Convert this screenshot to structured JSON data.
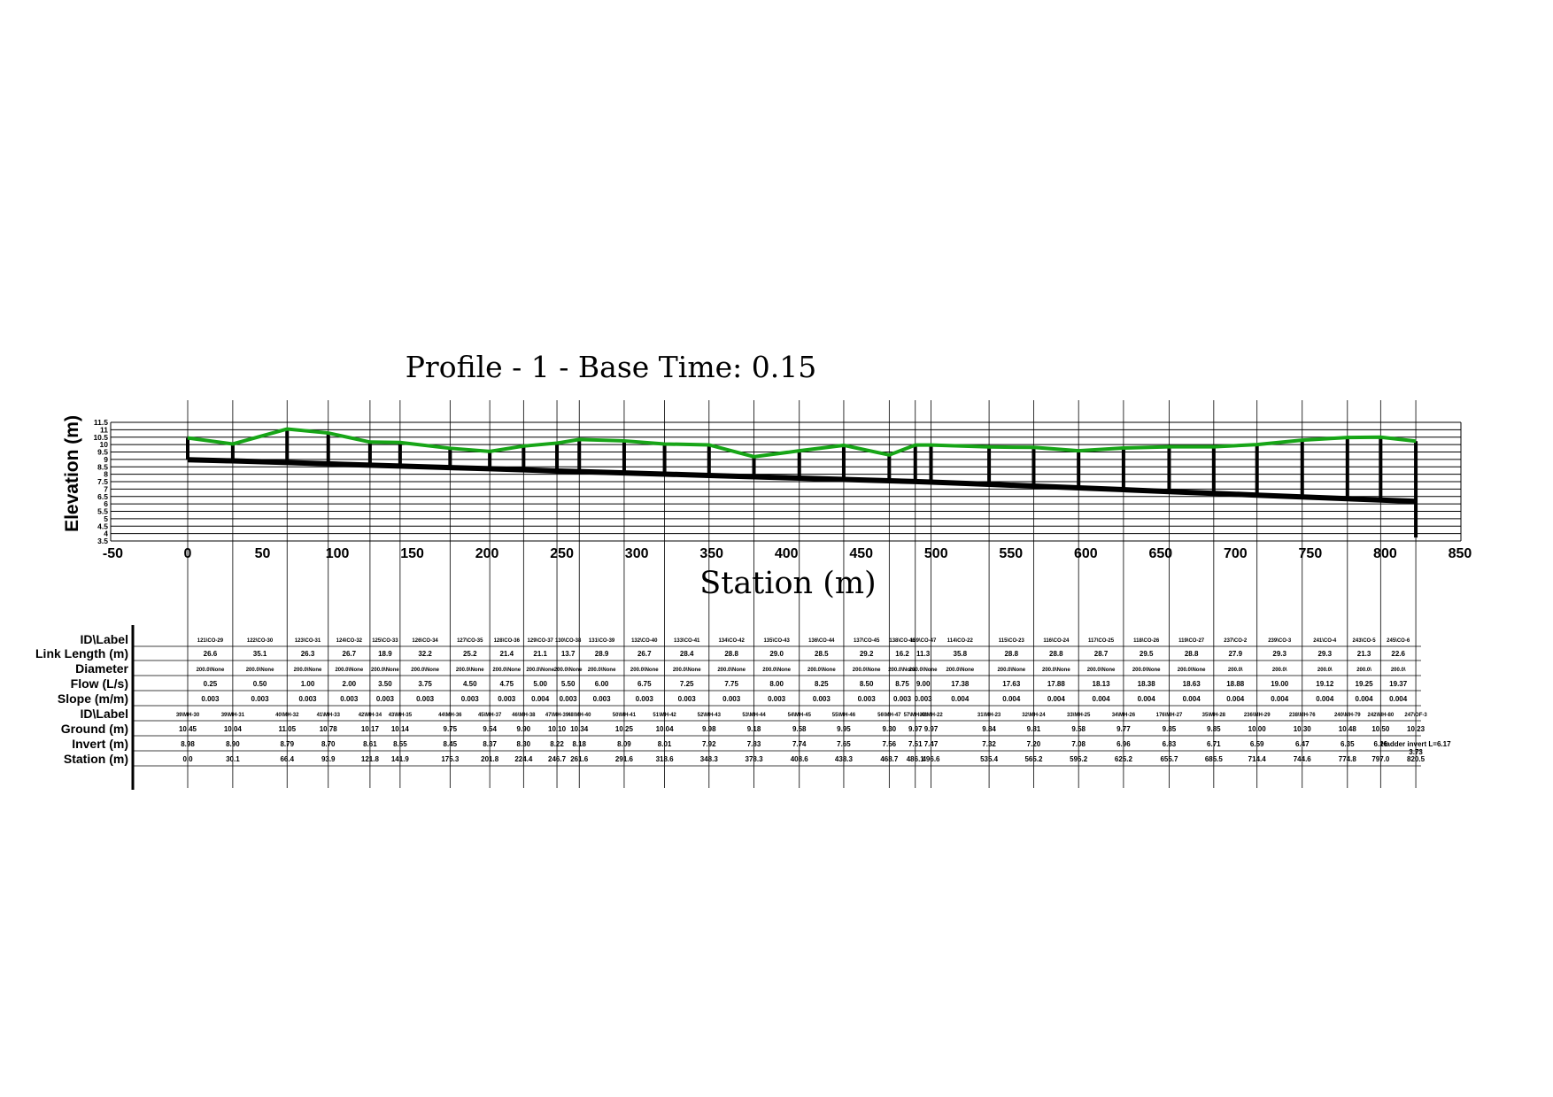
{
  "chart_data": {
    "type": "line",
    "title": "Profile - 1 - Base Time: 0.15",
    "xlabel": "Station (m)",
    "ylabel": "Elevation (m)",
    "xlim": [
      -50,
      850
    ],
    "ylim": [
      3.5,
      11.5
    ],
    "xticks": [
      -50,
      0,
      50,
      100,
      150,
      200,
      250,
      300,
      350,
      400,
      450,
      500,
      550,
      600,
      650,
      700,
      750,
      800,
      850
    ],
    "xtick_labels": [
      "-50",
      "0",
      "50",
      "100",
      "150",
      "200",
      "250",
      "300",
      "350",
      "400",
      "450",
      "500",
      "550",
      "600",
      "650",
      "700",
      "750",
      "800",
      "850"
    ],
    "yticks": [
      3.5,
      4,
      4.5,
      5,
      5.5,
      6,
      6.5,
      7,
      7.5,
      8,
      8.5,
      9,
      9.5,
      10,
      10.5,
      11,
      11.5
    ],
    "ytick_labels": [
      "3.5",
      "4",
      "4.5",
      "5",
      "5.5",
      "6",
      "6.5",
      "7",
      "7.5",
      "8",
      "8.5",
      "9",
      "9.5",
      "10",
      "10.5",
      "11",
      "11.5"
    ],
    "grid": true,
    "colors": {
      "ground": "#17a517",
      "pipe": "#000000",
      "grid": "#000000"
    },
    "nodes": [
      {
        "id": "39\\MH-30",
        "station": 0.0,
        "ground": 10.45,
        "invert": 8.98,
        "ground_label": "10.45",
        "invert_label": "8.98",
        "station_label": "0.0"
      },
      {
        "id": "39\\MH-31",
        "station": 30.1,
        "ground": 10.04,
        "invert": 8.9,
        "ground_label": "10.04",
        "invert_label": "8.90",
        "station_label": "30.1"
      },
      {
        "id": "40\\MH-32",
        "station": 66.4,
        "ground": 11.05,
        "invert": 8.79,
        "ground_label": "11.05",
        "invert_label": "8.79",
        "station_label": "66.4"
      },
      {
        "id": "41\\MH-33",
        "station": 93.9,
        "ground": 10.78,
        "invert": 8.7,
        "ground_label": "10.78",
        "invert_label": "8.70",
        "station_label": "93.9"
      },
      {
        "id": "42\\MH-34",
        "station": 121.8,
        "ground": 10.17,
        "invert": 8.61,
        "ground_label": "10.17",
        "invert_label": "8.61",
        "station_label": "121.8"
      },
      {
        "id": "43\\MH-35",
        "station": 141.9,
        "ground": 10.14,
        "invert": 8.55,
        "ground_label": "10.14",
        "invert_label": "8.55",
        "station_label": "141.9"
      },
      {
        "id": "44\\MH-36",
        "station": 175.3,
        "ground": 9.75,
        "invert": 8.45,
        "ground_label": "9.75",
        "invert_label": "8.45",
        "station_label": "175.3"
      },
      {
        "id": "45\\MH-37",
        "station": 201.8,
        "ground": 9.54,
        "invert": 8.37,
        "ground_label": "9.54",
        "invert_label": "8.37",
        "station_label": "201.8"
      },
      {
        "id": "46\\MH-38",
        "station": 224.4,
        "ground": 9.9,
        "invert": 8.3,
        "ground_label": "9.90",
        "invert_label": "8.30",
        "station_label": "224.4"
      },
      {
        "id": "47\\MH-39",
        "station": 246.7,
        "ground": 10.1,
        "invert": 8.22,
        "ground_label": "10.10",
        "invert_label": "8.22",
        "station_label": "246.7"
      },
      {
        "id": "48\\MH-40",
        "station": 261.6,
        "ground": 10.34,
        "invert": 8.18,
        "ground_label": "10.34",
        "invert_label": "8.18",
        "station_label": "261.6"
      },
      {
        "id": "50\\MH-41",
        "station": 291.6,
        "ground": 10.25,
        "invert": 8.09,
        "ground_label": "10.25",
        "invert_label": "8.09",
        "station_label": "291.6"
      },
      {
        "id": "51\\MH-42",
        "station": 318.6,
        "ground": 10.04,
        "invert": 8.01,
        "ground_label": "10.04",
        "invert_label": "8.01",
        "station_label": "318.6"
      },
      {
        "id": "52\\MH-43",
        "station": 348.3,
        "ground": 9.98,
        "invert": 7.92,
        "ground_label": "9.98",
        "invert_label": "7.92",
        "station_label": "348.3"
      },
      {
        "id": "53\\MH-44",
        "station": 378.3,
        "ground": 9.18,
        "invert": 7.83,
        "ground_label": "9.18",
        "invert_label": "7.83",
        "station_label": "378.3"
      },
      {
        "id": "54\\MH-45",
        "station": 408.6,
        "ground": 9.58,
        "invert": 7.74,
        "ground_label": "9.58",
        "invert_label": "7.74",
        "station_label": "408.6"
      },
      {
        "id": "55\\MH-46",
        "station": 438.3,
        "ground": 9.95,
        "invert": 7.65,
        "ground_label": "9.95",
        "invert_label": "7.65",
        "station_label": "438.3"
      },
      {
        "id": "56\\MH-47",
        "station": 468.7,
        "ground": 9.3,
        "invert": 7.56,
        "ground_label": "9.30",
        "invert_label": "7.56",
        "station_label": "468.7"
      },
      {
        "id": "57\\MH-48",
        "station": 486.1,
        "ground": 9.97,
        "invert": 7.51,
        "ground_label": "9.97",
        "invert_label": "7.51",
        "station_label": "486.1"
      },
      {
        "id": "30\\MH-22",
        "station": 496.6,
        "ground": 9.97,
        "invert": 7.47,
        "ground_label": "9.97",
        "invert_label": "7.47",
        "station_label": "496.6"
      },
      {
        "id": "31\\MH-23",
        "station": 535.4,
        "ground": 9.84,
        "invert": 7.32,
        "ground_label": "9.84",
        "invert_label": "7.32",
        "station_label": "535.4"
      },
      {
        "id": "32\\MH-24",
        "station": 565.2,
        "ground": 9.81,
        "invert": 7.2,
        "ground_label": "9.81",
        "invert_label": "7.20",
        "station_label": "565.2"
      },
      {
        "id": "33\\MH-25",
        "station": 595.2,
        "ground": 9.58,
        "invert": 7.08,
        "ground_label": "9.58",
        "invert_label": "7.08",
        "station_label": "595.2"
      },
      {
        "id": "34\\MH-26",
        "station": 625.2,
        "ground": 9.77,
        "invert": 6.96,
        "ground_label": "9.77",
        "invert_label": "6.96",
        "station_label": "625.2"
      },
      {
        "id": "176\\MH-27",
        "station": 655.7,
        "ground": 9.85,
        "invert": 6.83,
        "ground_label": "9.85",
        "invert_label": "6.83",
        "station_label": "655.7"
      },
      {
        "id": "35\\MH-28",
        "station": 685.5,
        "ground": 9.85,
        "invert": 6.71,
        "ground_label": "9.85",
        "invert_label": "6.71",
        "station_label": "685.5"
      },
      {
        "id": "236\\MH-29",
        "station": 714.4,
        "ground": 10.0,
        "invert": 6.59,
        "ground_label": "10.00",
        "invert_label": "6.59",
        "station_label": "714.4"
      },
      {
        "id": "238\\MH-76",
        "station": 744.6,
        "ground": 10.3,
        "invert": 6.47,
        "ground_label": "10.30",
        "invert_label": "6.47",
        "station_label": "744.6"
      },
      {
        "id": "240\\MH-79",
        "station": 774.8,
        "ground": 10.48,
        "invert": 6.35,
        "ground_label": "10.48",
        "invert_label": "6.35",
        "station_label": "774.8"
      },
      {
        "id": "242\\MH-80",
        "station": 797.0,
        "ground": 10.5,
        "invert": 6.26,
        "ground_label": "10.50",
        "invert_label": "6.26",
        "station_label": "797.0"
      },
      {
        "id": "247\\OF-3",
        "station": 820.5,
        "ground": 10.23,
        "invert": 6.17,
        "ground_label": "10.23",
        "invert_label": "Hadder invert L=6.17",
        "station_label": "820.5"
      }
    ],
    "outfall_bottom": 3.73,
    "outfall_bottom_label": "3.73",
    "links": [
      {
        "id": "121\\CO-29",
        "length": "26.6",
        "diameter": "200.0\\None",
        "flow": "0.25",
        "slope": "0.003"
      },
      {
        "id": "122\\CO-30",
        "length": "35.1",
        "diameter": "200.0\\None",
        "flow": "0.50",
        "slope": "0.003"
      },
      {
        "id": "123\\CO-31",
        "length": "26.3",
        "diameter": "200.0\\None",
        "flow": "1.00",
        "slope": "0.003"
      },
      {
        "id": "124\\CO-32",
        "length": "26.7",
        "diameter": "200.0\\None",
        "flow": "2.00",
        "slope": "0.003"
      },
      {
        "id": "125\\CO-33",
        "length": "18.9",
        "diameter": "200.0\\None",
        "flow": "3.50",
        "slope": "0.003"
      },
      {
        "id": "126\\CO-34",
        "length": "32.2",
        "diameter": "200.0\\None",
        "flow": "3.75",
        "slope": "0.003"
      },
      {
        "id": "127\\CO-35",
        "length": "25.2",
        "diameter": "200.0\\None",
        "flow": "4.50",
        "slope": "0.003"
      },
      {
        "id": "128\\CO-36",
        "length": "21.4",
        "diameter": "200.0\\None",
        "flow": "4.75",
        "slope": "0.003"
      },
      {
        "id": "129\\CO-37",
        "length": "21.1",
        "diameter": "200.0\\None",
        "flow": "5.00",
        "slope": "0.004"
      },
      {
        "id": "130\\CO-38",
        "length": "13.7",
        "diameter": "200.0\\None",
        "flow": "5.50",
        "slope": "0.003"
      },
      {
        "id": "131\\CO-39",
        "length": "28.9",
        "diameter": "200.0\\None",
        "flow": "6.00",
        "slope": "0.003"
      },
      {
        "id": "132\\CO-40",
        "length": "26.7",
        "diameter": "200.0\\None",
        "flow": "6.75",
        "slope": "0.003"
      },
      {
        "id": "133\\CO-41",
        "length": "28.4",
        "diameter": "200.0\\None",
        "flow": "7.25",
        "slope": "0.003"
      },
      {
        "id": "134\\CO-42",
        "length": "28.8",
        "diameter": "200.0\\None",
        "flow": "7.75",
        "slope": "0.003"
      },
      {
        "id": "135\\CO-43",
        "length": "29.0",
        "diameter": "200.0\\None",
        "flow": "8.00",
        "slope": "0.003"
      },
      {
        "id": "136\\CO-44",
        "length": "28.5",
        "diameter": "200.0\\None",
        "flow": "8.25",
        "slope": "0.003"
      },
      {
        "id": "137\\CO-45",
        "length": "29.2",
        "diameter": "200.0\\None",
        "flow": "8.50",
        "slope": "0.003"
      },
      {
        "id": "138\\CO-46",
        "length": "16.2",
        "diameter": "200.0\\None",
        "flow": "8.75",
        "slope": "0.003"
      },
      {
        "id": "139\\CO-47",
        "length": "11.3",
        "diameter": "200.0\\None",
        "flow": "9.00",
        "slope": "0.003"
      },
      {
        "id": "114\\CO-22",
        "length": "35.8",
        "diameter": "200.0\\None",
        "flow": "17.38",
        "slope": "0.004"
      },
      {
        "id": "115\\CO-23",
        "length": "28.8",
        "diameter": "200.0\\None",
        "flow": "17.63",
        "slope": "0.004"
      },
      {
        "id": "116\\CO-24",
        "length": "28.8",
        "diameter": "200.0\\None",
        "flow": "17.88",
        "slope": "0.004"
      },
      {
        "id": "117\\CO-25",
        "length": "28.7",
        "diameter": "200.0\\None",
        "flow": "18.13",
        "slope": "0.004"
      },
      {
        "id": "118\\CO-26",
        "length": "29.5",
        "diameter": "200.0\\None",
        "flow": "18.38",
        "slope": "0.004"
      },
      {
        "id": "119\\CO-27",
        "length": "28.8",
        "diameter": "200.0\\None",
        "flow": "18.63",
        "slope": "0.004"
      },
      {
        "id": "237\\CO-2",
        "length": "27.9",
        "diameter": "200.0\\",
        "flow": "18.88",
        "slope": "0.004"
      },
      {
        "id": "239\\CO-3",
        "length": "29.3",
        "diameter": "200.0\\",
        "flow": "19.00",
        "slope": "0.004"
      },
      {
        "id": "241\\CO-4",
        "length": "29.3",
        "diameter": "200.0\\",
        "flow": "19.12",
        "slope": "0.004"
      },
      {
        "id": "243\\CO-5",
        "length": "21.3",
        "diameter": "200.0\\",
        "flow": "19.25",
        "slope": "0.004"
      },
      {
        "id": "245\\CO-6",
        "length": "22.6",
        "diameter": "200.0\\",
        "flow": "19.37",
        "slope": "0.004"
      }
    ]
  },
  "table": {
    "row_labels": [
      "ID\\Label",
      "Link Length (m)",
      "Diameter",
      "Flow (L/s)",
      "Slope (m/m)",
      "ID\\Label",
      "Ground (m)",
      "Invert (m)",
      "Station (m)"
    ]
  }
}
